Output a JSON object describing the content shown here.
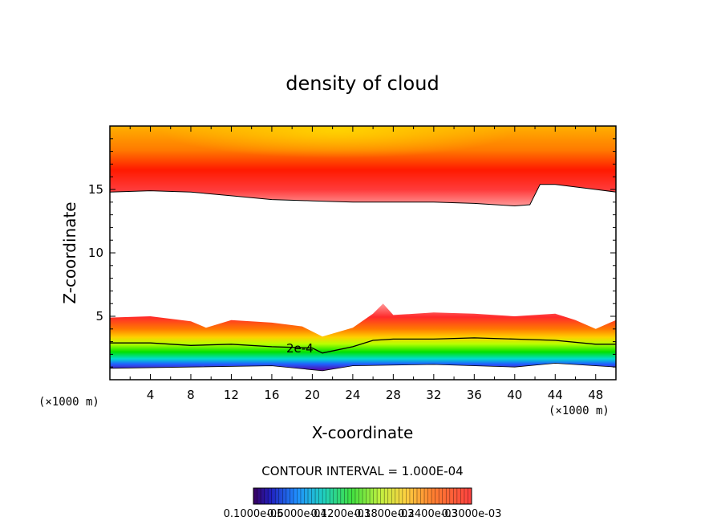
{
  "chart_data": {
    "type": "heatmap",
    "title": "density of cloud",
    "xlabel": "X-coordinate",
    "ylabel": "Z-coordinate",
    "x_unit": "(×1000 m)",
    "z_unit": "(×1000 m)",
    "xlim": [
      0,
      50
    ],
    "ylim": [
      0,
      20
    ],
    "x_ticks": [
      4,
      8,
      12,
      16,
      20,
      24,
      28,
      32,
      36,
      40,
      44,
      48
    ],
    "y_ticks": [
      5,
      10,
      15
    ],
    "contour_interval_text": "CONTOUR INTERVAL = 1.000E-04",
    "contour_label": "2e-4",
    "colorbar_labels": [
      "0.1000e-05",
      "0.6000e-04",
      "0.1200e-03",
      "0.1800e-03",
      "0.2400e-03",
      "0.3000e-03"
    ],
    "layers": {
      "upper_cloud_base_km": [
        {
          "x": 0,
          "z": 14.8
        },
        {
          "x": 4,
          "z": 14.9
        },
        {
          "x": 8,
          "z": 14.8
        },
        {
          "x": 12,
          "z": 14.5
        },
        {
          "x": 16,
          "z": 14.2
        },
        {
          "x": 20,
          "z": 14.1
        },
        {
          "x": 24,
          "z": 14.0
        },
        {
          "x": 28,
          "z": 14.0
        },
        {
          "x": 32,
          "z": 14.0
        },
        {
          "x": 36,
          "z": 13.9
        },
        {
          "x": 40,
          "z": 13.7
        },
        {
          "x": 41.5,
          "z": 13.8
        },
        {
          "x": 42.5,
          "z": 15.4
        },
        {
          "x": 44,
          "z": 15.4
        },
        {
          "x": 48,
          "z": 15.0
        },
        {
          "x": 50,
          "z": 14.8
        }
      ],
      "lower_cloud_top_km": [
        {
          "x": 0,
          "z": 4.9
        },
        {
          "x": 4,
          "z": 5.0
        },
        {
          "x": 8,
          "z": 4.6
        },
        {
          "x": 9.5,
          "z": 4.1
        },
        {
          "x": 12,
          "z": 4.7
        },
        {
          "x": 16,
          "z": 4.5
        },
        {
          "x": 19,
          "z": 4.2
        },
        {
          "x": 21,
          "z": 3.4
        },
        {
          "x": 24,
          "z": 4.1
        },
        {
          "x": 26,
          "z": 5.2
        },
        {
          "x": 27,
          "z": 6.0
        },
        {
          "x": 28,
          "z": 5.1
        },
        {
          "x": 32,
          "z": 5.3
        },
        {
          "x": 36,
          "z": 5.2
        },
        {
          "x": 40,
          "z": 5.0
        },
        {
          "x": 44,
          "z": 5.2
        },
        {
          "x": 46,
          "z": 4.7
        },
        {
          "x": 48,
          "z": 4.0
        },
        {
          "x": 50,
          "z": 4.7
        }
      ],
      "contour_2e4_km": [
        {
          "x": 0,
          "z": 2.9
        },
        {
          "x": 4,
          "z": 2.9
        },
        {
          "x": 8,
          "z": 2.7
        },
        {
          "x": 12,
          "z": 2.8
        },
        {
          "x": 16,
          "z": 2.6
        },
        {
          "x": 20,
          "z": 2.5
        },
        {
          "x": 21,
          "z": 2.1
        },
        {
          "x": 24,
          "z": 2.6
        },
        {
          "x": 26,
          "z": 3.1
        },
        {
          "x": 28,
          "z": 3.2
        },
        {
          "x": 32,
          "z": 3.2
        },
        {
          "x": 36,
          "z": 3.3
        },
        {
          "x": 40,
          "z": 3.2
        },
        {
          "x": 44,
          "z": 3.1
        },
        {
          "x": 48,
          "z": 2.8
        },
        {
          "x": 50,
          "z": 2.8
        }
      ],
      "lower_cloud_base_km": [
        {
          "x": 0,
          "z": 0.9
        },
        {
          "x": 8,
          "z": 1.0
        },
        {
          "x": 16,
          "z": 1.1
        },
        {
          "x": 21,
          "z": 0.7
        },
        {
          "x": 24,
          "z": 1.1
        },
        {
          "x": 32,
          "z": 1.2
        },
        {
          "x": 40,
          "z": 1.0
        },
        {
          "x": 44,
          "z": 1.3
        },
        {
          "x": 50,
          "z": 1.0
        }
      ]
    }
  }
}
